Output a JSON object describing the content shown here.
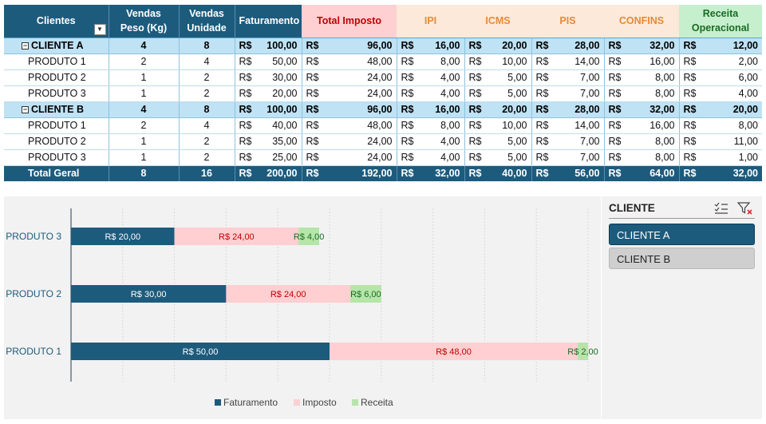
{
  "pivot": {
    "headers": {
      "clientes": "Clientes",
      "vendas_peso": "Vendas Peso (Kg)",
      "vendas_unidade": "Vendas Unidade",
      "faturamento": "Faturamento",
      "total_imposto": "Total Imposto",
      "ipi": "IPI",
      "icms": "ICMS",
      "pis": "PIS",
      "confins": "CONFINS",
      "receita": "Receita Operacional"
    },
    "currency": "R$",
    "groups": [
      {
        "name": "CLIENTE A",
        "values": [
          "4",
          "8",
          "100,00",
          "96,00",
          "16,00",
          "20,00",
          "28,00",
          "32,00",
          "12,00"
        ],
        "products": [
          {
            "name": "PRODUTO 1",
            "values": [
              "2",
              "4",
              "50,00",
              "48,00",
              "8,00",
              "10,00",
              "14,00",
              "16,00",
              "2,00"
            ]
          },
          {
            "name": "PRODUTO 2",
            "values": [
              "1",
              "2",
              "30,00",
              "24,00",
              "4,00",
              "5,00",
              "7,00",
              "8,00",
              "6,00"
            ]
          },
          {
            "name": "PRODUTO 3",
            "values": [
              "1",
              "2",
              "20,00",
              "24,00",
              "4,00",
              "5,00",
              "7,00",
              "8,00",
              "4,00"
            ]
          }
        ]
      },
      {
        "name": "CLIENTE B",
        "values": [
          "4",
          "8",
          "100,00",
          "96,00",
          "16,00",
          "20,00",
          "28,00",
          "32,00",
          "20,00"
        ],
        "products": [
          {
            "name": "PRODUTO 1",
            "values": [
              "2",
              "4",
              "40,00",
              "48,00",
              "8,00",
              "10,00",
              "14,00",
              "16,00",
              "8,00"
            ]
          },
          {
            "name": "PRODUTO 2",
            "values": [
              "1",
              "2",
              "35,00",
              "24,00",
              "4,00",
              "5,00",
              "7,00",
              "8,00",
              "11,00"
            ]
          },
          {
            "name": "PRODUTO 3",
            "values": [
              "1",
              "2",
              "25,00",
              "24,00",
              "4,00",
              "5,00",
              "7,00",
              "8,00",
              "1,00"
            ]
          }
        ]
      }
    ],
    "total": {
      "label": "Total Geral",
      "values": [
        "8",
        "16",
        "200,00",
        "192,00",
        "32,00",
        "40,00",
        "56,00",
        "64,00",
        "32,00"
      ]
    }
  },
  "slicer": {
    "title": "CLIENTE",
    "items": [
      {
        "label": "CLIENTE A",
        "selected": true
      },
      {
        "label": "CLIENTE B",
        "selected": false
      }
    ],
    "icons": [
      "multi-select-icon",
      "clear-filter-icon"
    ]
  },
  "chart_data": {
    "type": "bar",
    "orientation": "horizontal",
    "stacked": true,
    "categories": [
      "PRODUTO 3",
      "PRODUTO 2",
      "PRODUTO 1"
    ],
    "series": [
      {
        "name": "Faturamento",
        "values": [
          20,
          30,
          50
        ],
        "labels": [
          "R$ 20,00",
          "R$ 30,00",
          "R$ 50,00"
        ],
        "color": "#1d5b7d"
      },
      {
        "name": "Imposto",
        "values": [
          24,
          24,
          48
        ],
        "labels": [
          "R$ 24,00",
          "R$ 24,00",
          "R$ 48,00"
        ],
        "color": "#ffcfd1"
      },
      {
        "name": "Receita",
        "values": [
          4,
          6,
          2
        ],
        "labels": [
          "R$ 4,00",
          "R$ 6,00",
          "R$ 2,00"
        ],
        "color": "#b6e5a9"
      }
    ],
    "xlim": [
      0,
      100
    ],
    "grid": true,
    "legend": "bottom"
  }
}
